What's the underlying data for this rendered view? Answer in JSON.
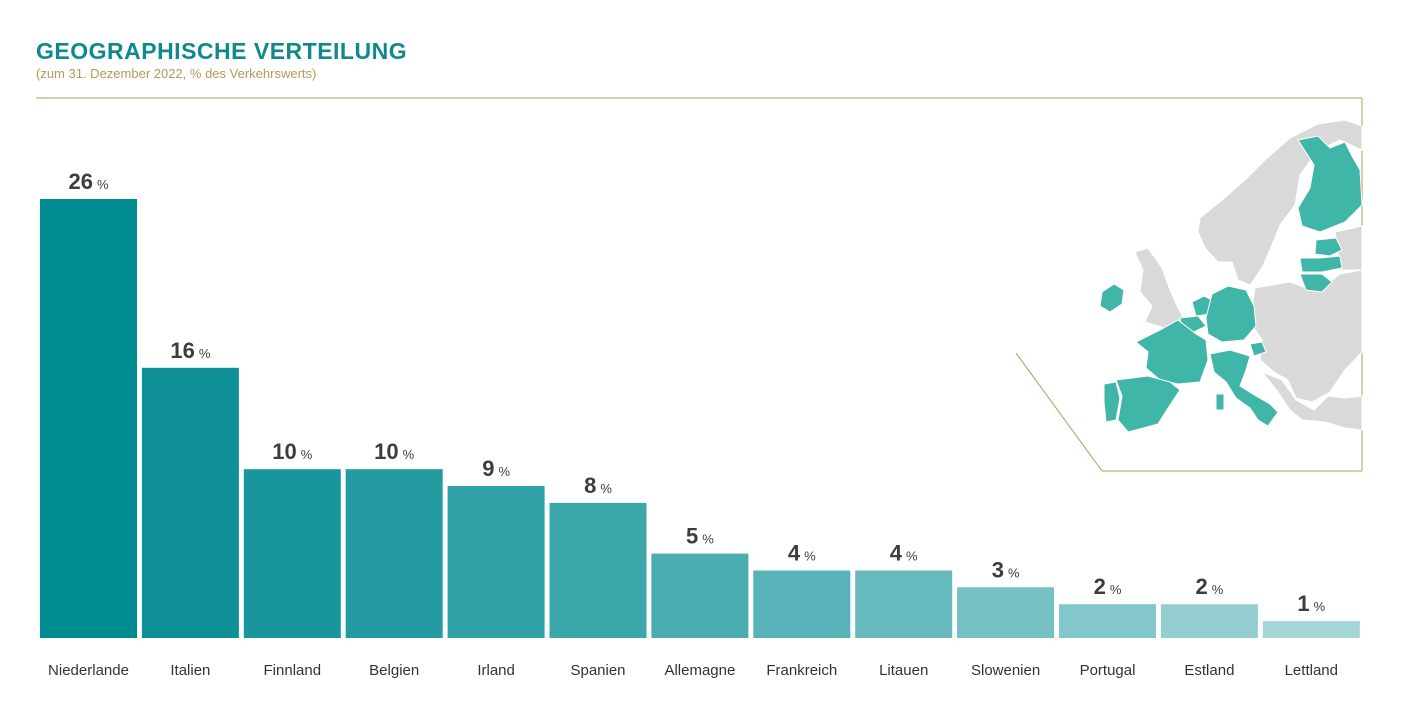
{
  "header": {
    "title": "GEOGRAPHISCHE VERTEILUNG",
    "subtitle": "(zum 31. Dezember 2022, % des Verkehrswerts)"
  },
  "colors": {
    "title": "#0e8a8f",
    "subtitle": "#b8975a",
    "frame": "#b8975a",
    "map_highlight": "#3fb6a8",
    "map_other": "#d9d9d9",
    "bars": [
      "#008b91",
      "#0e9096",
      "#19969b",
      "#249ba1",
      "#30a1a6",
      "#3ca7ab",
      "#49adb1",
      "#57b3b7",
      "#66babd",
      "#75c0c3",
      "#84c7ca",
      "#94ced1",
      "#a4d6d8"
    ]
  },
  "map": {
    "icon": "europe-map-icon",
    "highlighted_countries": [
      "Finnland",
      "Estland",
      "Lettland",
      "Litauen",
      "Irland",
      "Belgien",
      "Niederlande",
      "Deutschland",
      "Frankreich",
      "Spanien",
      "Portugal",
      "Italien",
      "Slowenien"
    ]
  },
  "chart_data": {
    "type": "bar",
    "title": "GEOGRAPHISCHE VERTEILUNG",
    "subtitle": "(zum 31. Dezember 2022, % des Verkehrswerts)",
    "xlabel": "",
    "ylabel": "",
    "unit": "%",
    "categories": [
      "Niederlande",
      "Italien",
      "Finnland",
      "Belgien",
      "Irland",
      "Spanien",
      "Allemagne",
      "Frankreich",
      "Litauen",
      "Slowenien",
      "Portugal",
      "Estland",
      "Lettland"
    ],
    "values": [
      26,
      16,
      10,
      10,
      9,
      8,
      5,
      4,
      4,
      3,
      2,
      2,
      1
    ],
    "ylim": [
      0,
      26
    ],
    "grid": false,
    "legend": "none"
  }
}
